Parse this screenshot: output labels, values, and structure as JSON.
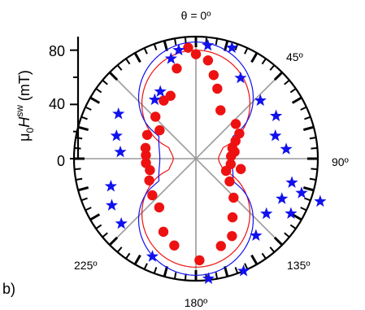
{
  "chart_data": {
    "type": "scatter",
    "coordinate_system": "polar",
    "panel_label": "b)",
    "theta_title": "θ = 0º",
    "radial_label": {
      "prefix": "μ",
      "sub": "0",
      "var": "H",
      "sup": "sw",
      "unit": " (mT)"
    },
    "angle_labels": [
      {
        "angle_deg": 0,
        "text": "θ = 0º"
      },
      {
        "angle_deg": 45,
        "text": "45º"
      },
      {
        "angle_deg": 90,
        "text": "90º"
      },
      {
        "angle_deg": 135,
        "text": "135º"
      },
      {
        "angle_deg": 180,
        "text": "180º"
      },
      {
        "angle_deg": 225,
        "text": "225º"
      }
    ],
    "radial_ticks": [
      0,
      40,
      80
    ],
    "r_range": [
      0,
      90
    ],
    "colors": {
      "red": "#ee1111",
      "blue": "#1111ee",
      "axis": "#000000",
      "grid": "#9a9a9a"
    },
    "series": [
      {
        "marker": "circle",
        "color": "#ee1111",
        "points": [
          {
            "theta": 0,
            "r": 77
          },
          {
            "theta": 7,
            "r": 73
          },
          {
            "theta": 12,
            "r": 63
          },
          {
            "theta": 17,
            "r": 54
          },
          {
            "theta": 27,
            "r": 40
          },
          {
            "theta": 49,
            "r": 39
          },
          {
            "theta": 60,
            "r": 37
          },
          {
            "theta": 66,
            "r": 32
          },
          {
            "theta": 74,
            "r": 28
          },
          {
            "theta": 80,
            "r": 29
          },
          {
            "theta": 86,
            "r": 26
          },
          {
            "theta": 99,
            "r": 26
          },
          {
            "theta": 103,
            "r": 34
          },
          {
            "theta": 112,
            "r": 24
          },
          {
            "theta": 124,
            "r": 30
          },
          {
            "theta": 136,
            "r": 40
          },
          {
            "theta": 148,
            "r": 51
          },
          {
            "theta": 155,
            "r": 63
          },
          {
            "theta": 164,
            "r": 67
          },
          {
            "theta": 178,
            "r": 75
          },
          {
            "theta": 194,
            "r": 66
          },
          {
            "theta": 204,
            "r": 59
          },
          {
            "theta": 217,
            "r": 45
          },
          {
            "theta": 230,
            "r": 42
          },
          {
            "theta": 245,
            "r": 38
          },
          {
            "theta": 256,
            "r": 35
          },
          {
            "theta": 265,
            "r": 37
          },
          {
            "theta": 274,
            "r": 37
          },
          {
            "theta": 282,
            "r": 38
          },
          {
            "theta": 296,
            "r": 40
          },
          {
            "theta": 308,
            "r": 34
          },
          {
            "theta": 316,
            "r": 43
          },
          {
            "theta": 331,
            "r": 49
          },
          {
            "theta": 338,
            "r": 50
          },
          {
            "theta": 348,
            "r": 68
          },
          {
            "theta": 356,
            "r": 82
          }
        ]
      },
      {
        "marker": "star",
        "color": "#1111ee",
        "points": [
          {
            "theta": 6,
            "r": 84
          },
          {
            "theta": 18,
            "r": 86
          },
          {
            "theta": 29,
            "r": 68
          },
          {
            "theta": 48,
            "r": 64
          },
          {
            "theta": 62,
            "r": 67
          },
          {
            "theta": 74,
            "r": 61
          },
          {
            "theta": 84,
            "r": 67
          },
          {
            "theta": 104,
            "r": 73
          },
          {
            "theta": 115,
            "r": 70
          },
          {
            "theta": 120,
            "r": 81
          },
          {
            "theta": 109,
            "r": 97
          },
          {
            "theta": 108,
            "r": 82
          },
          {
            "theta": 128,
            "r": 66
          },
          {
            "theta": 142,
            "r": 72
          },
          {
            "theta": 157,
            "r": 90
          },
          {
            "theta": 174,
            "r": 89
          },
          {
            "theta": 204,
            "r": 79
          },
          {
            "theta": 229,
            "r": 73
          },
          {
            "theta": 241,
            "r": 71
          },
          {
            "theta": 252,
            "r": 66
          },
          {
            "theta": 275,
            "r": 56
          },
          {
            "theta": 286,
            "r": 61
          },
          {
            "theta": 300,
            "r": 66
          },
          {
            "theta": 325,
            "r": 53
          },
          {
            "theta": 332,
            "r": 56
          },
          {
            "theta": 346,
            "r": 76
          },
          {
            "theta": 351,
            "r": 81
          }
        ]
      }
    ],
    "fit_curves": [
      {
        "color": "#ee1111",
        "model": "r = (A/2)·(sqrt(cos²θ + (B/A)·sin²θ) + sqrt(cos²θ − (B/A)·sin²θ)) for cos²θ ≥ (B/A)·sin²θ, else (A/2)·sqrt(cos²θ + (B/A)·sin²θ)",
        "A": 80,
        "B": 14
      },
      {
        "color": "#1111ee",
        "model": "r = (A/2)·(sqrt(cos²θ + (B/A)·sin²θ) + sqrt(cos²θ − (B/A)·sin²θ)) for cos²θ ≥ (B/A)·sin²θ, else (A/2)·sqrt(cos²θ + (B/A)·sin²θ)",
        "A": 86,
        "B": 33
      }
    ]
  }
}
